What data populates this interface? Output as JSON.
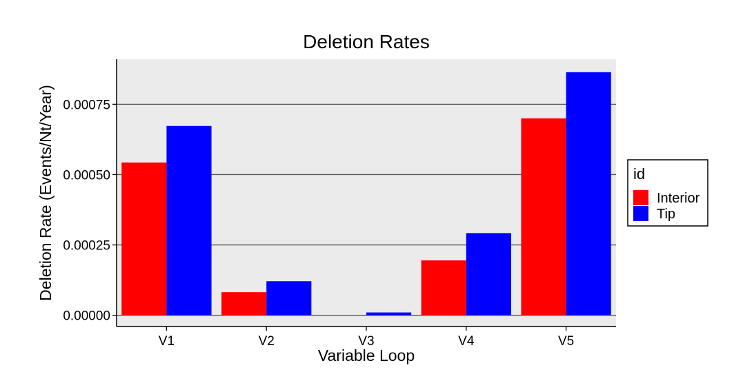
{
  "chart_data": {
    "type": "bar",
    "title": "Deletion Rates",
    "xlabel": "Variable Loop",
    "ylabel": "Deletion Rate (Events/Nt/Year)",
    "categories": [
      "V1",
      "V2",
      "V3",
      "V4",
      "V5"
    ],
    "series": [
      {
        "name": "Interior",
        "color": "#ff0000",
        "values": [
          0.000543,
          8.2e-05,
          0.0,
          0.000195,
          0.0007
        ]
      },
      {
        "name": "Tip",
        "color": "#0000ff",
        "values": [
          0.000673,
          0.000121,
          1e-05,
          0.000292,
          0.000864
        ]
      }
    ],
    "ylim": [
      -4e-05,
      0.00091
    ],
    "yticks": [
      0,
      0.00025,
      0.0005,
      0.00075
    ],
    "ytick_labels": [
      "0.00000",
      "0.00025",
      "0.00050",
      "0.00075"
    ],
    "grid": true,
    "legend": {
      "title": "id",
      "position": "right"
    },
    "panel_background": "#ebebeb"
  }
}
